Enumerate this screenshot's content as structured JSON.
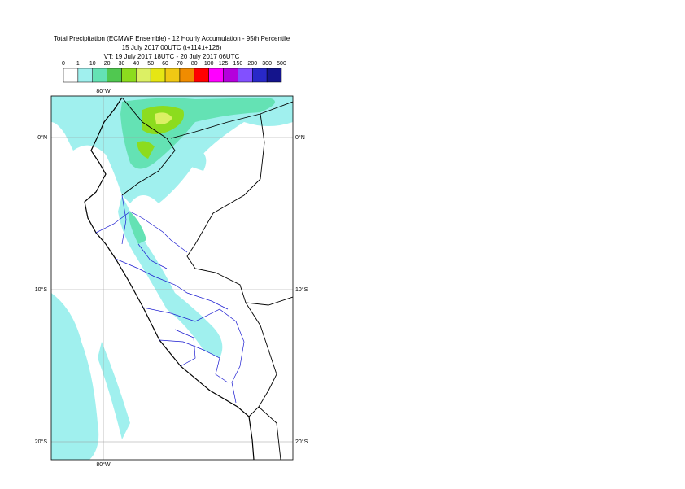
{
  "title": {
    "lines": [
      "Total Precipitation (ECMWF Ensemble) - 12 Hourly Accumulation - 95th Percentile",
      "15 July 2017 00UTC (t+114,t+126)",
      "VT: 19 July 2017 18UTC - 20 July 2017 06UTC"
    ]
  },
  "legend": {
    "levels": [
      0,
      1,
      10,
      20,
      30,
      40,
      50,
      60,
      70,
      80,
      100,
      125,
      150,
      200,
      300,
      500
    ],
    "colors": [
      "#ffffff",
      "#a0f0ee",
      "#64e2b4",
      "#50c850",
      "#8cdc1e",
      "#dcf064",
      "#e6e614",
      "#f0c814",
      "#f08c00",
      "#ff0000",
      "#ff00ff",
      "#b400dc",
      "#8250ff",
      "#2828c8",
      "#14148c"
    ]
  },
  "map": {
    "lon_labels": [
      "80°W",
      "80°W"
    ],
    "lat_labels": [
      "0°N",
      "10°S",
      "20°S",
      "0°N",
      "10°S",
      "20°S"
    ]
  }
}
